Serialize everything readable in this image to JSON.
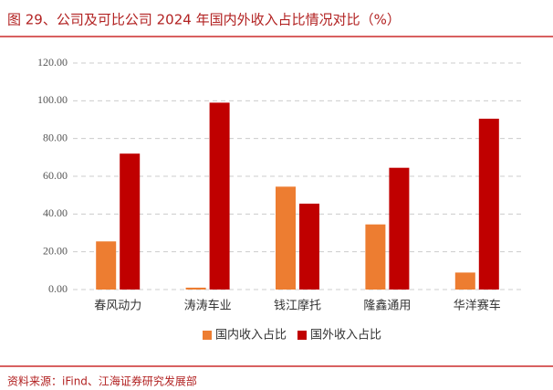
{
  "chart_data": {
    "type": "bar",
    "title": "图 29、公司及可比公司 2024 年国内外收入占比情况对比（%）",
    "source": "资料来源：iFind、江海证券研究发展部",
    "categories": [
      "春风动力",
      "涛涛车业",
      "钱江摩托",
      "隆鑫通用",
      "华洋赛车"
    ],
    "series": [
      {
        "name": "国内收入占比",
        "color": "#ed7d31",
        "values": [
          25.5,
          1,
          54.5,
          34.5,
          9
        ]
      },
      {
        "name": "国外收入占比",
        "color": "#c00000",
        "values": [
          72,
          99,
          45.5,
          64.5,
          90.5
        ]
      }
    ],
    "ylim": [
      0,
      120
    ],
    "yticks": [
      {
        "value": 0,
        "label": "0.00"
      },
      {
        "value": 20,
        "label": "20.00"
      },
      {
        "value": 40,
        "label": "40.00"
      },
      {
        "value": 60,
        "label": "60.00"
      },
      {
        "value": 80,
        "label": "80.00"
      },
      {
        "value": 100,
        "label": "100.00"
      },
      {
        "value": 120,
        "label": "120.00"
      }
    ],
    "grid": true,
    "legend": "bottom"
  }
}
